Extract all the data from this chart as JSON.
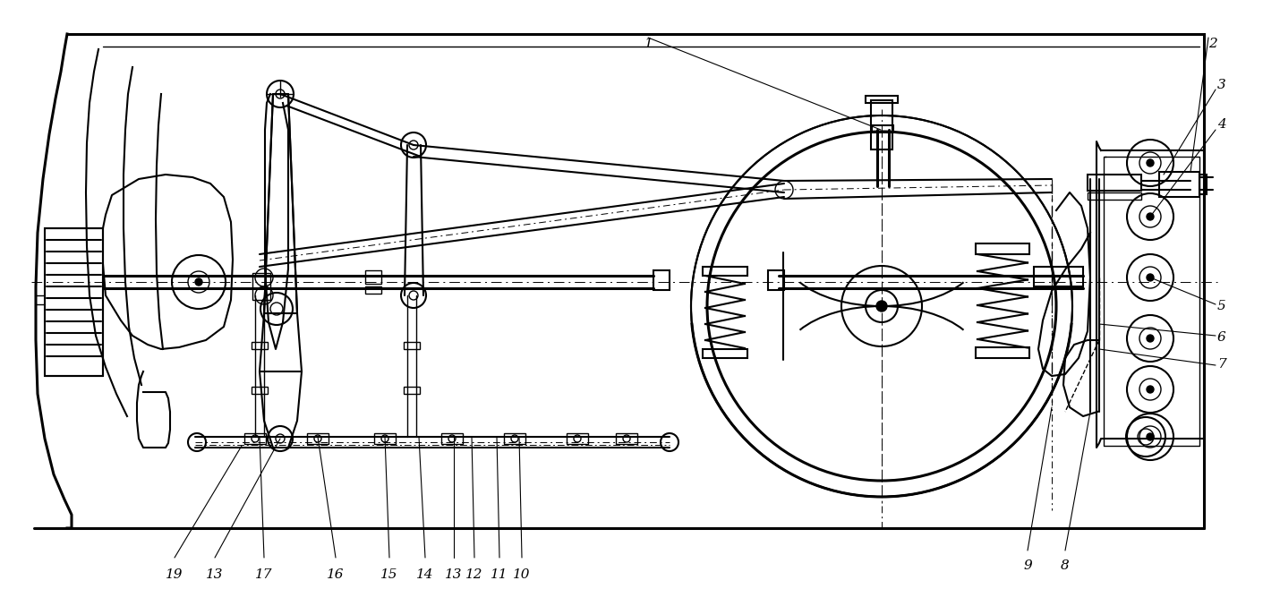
{
  "bg_color": "#ffffff",
  "line_color": "#000000",
  "fig_width": 14.3,
  "fig_height": 6.58,
  "dpi": 100,
  "bottom_labels": [
    [
      "19",
      195,
      635
    ],
    [
      "13",
      240,
      635
    ],
    [
      "17",
      295,
      635
    ],
    [
      "16",
      375,
      635
    ],
    [
      "15",
      435,
      635
    ],
    [
      "14",
      475,
      635
    ],
    [
      "13",
      507,
      635
    ],
    [
      "12",
      530,
      635
    ],
    [
      "11",
      558,
      635
    ],
    [
      "10",
      583,
      635
    ]
  ],
  "top_labels": [
    [
      "1",
      720,
      42
    ],
    [
      "2",
      1340,
      42
    ],
    [
      "3",
      1358,
      95
    ],
    [
      "4",
      1358,
      140
    ],
    [
      "5",
      1358,
      338
    ],
    [
      "6",
      1358,
      375
    ],
    [
      "7",
      1358,
      405
    ],
    [
      "8",
      1190,
      620
    ],
    [
      "9",
      1155,
      620
    ]
  ]
}
